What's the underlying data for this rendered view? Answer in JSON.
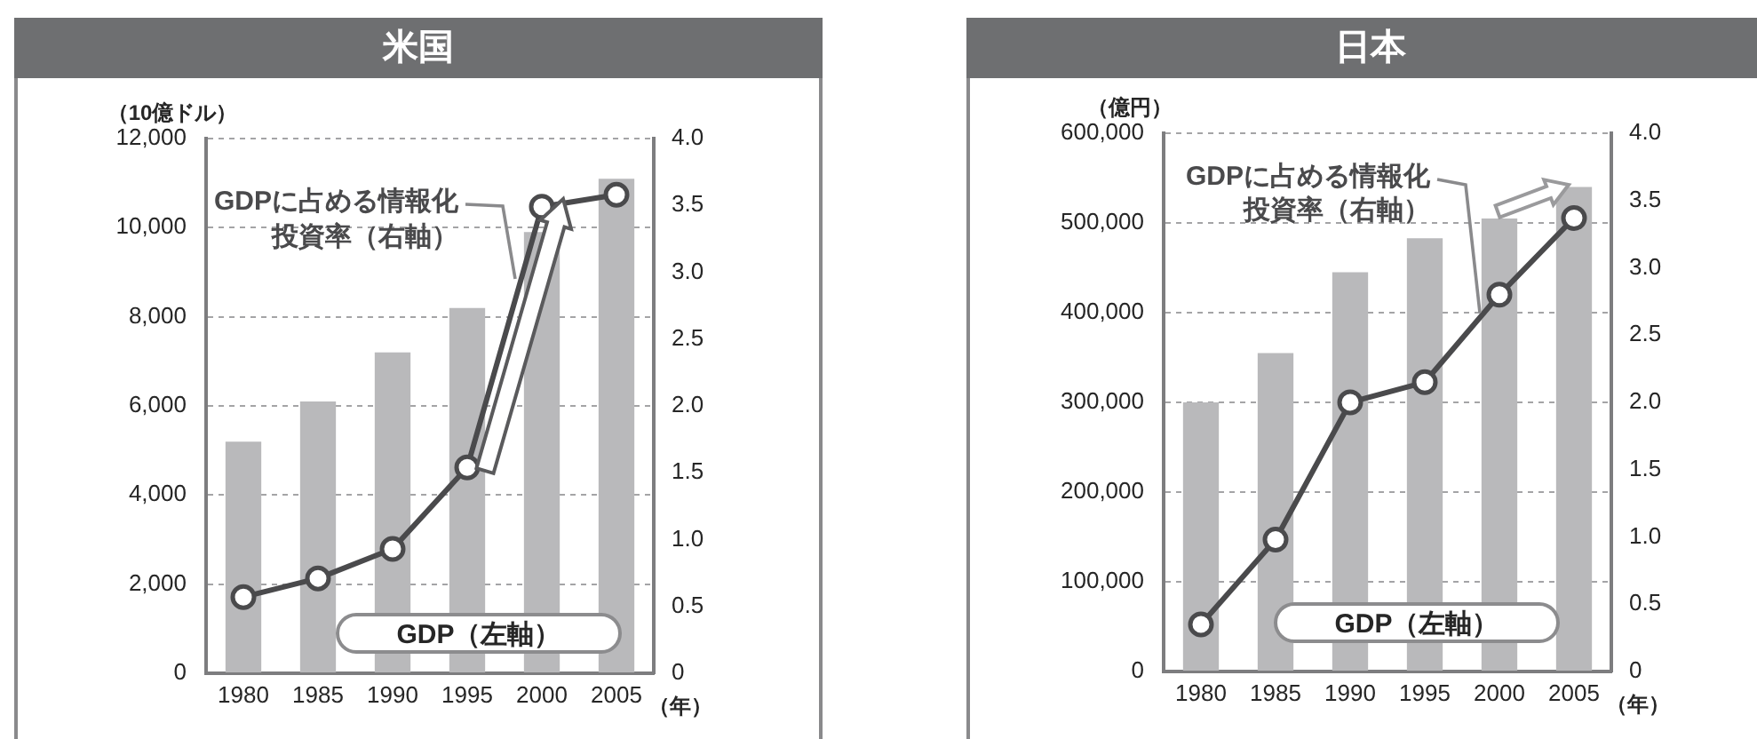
{
  "chart_data": [
    {
      "type": "bar",
      "title": "米国",
      "ylabel": "（10億ドル）",
      "xlabel": "（年）",
      "categories": [
        "1980",
        "1985",
        "1990",
        "1995",
        "2000",
        "2005"
      ],
      "series": [
        {
          "name": "GDP（左軸）",
          "type": "bar",
          "color": "#b9b9bb",
          "values": [
            5200,
            6100,
            7200,
            8200,
            9900,
            11100
          ]
        },
        {
          "name": "GDPに占める情報化投資率（右軸）",
          "type": "line",
          "axis": "y2",
          "color": "#4a4a4c",
          "values": [
            0.57,
            0.71,
            0.93,
            1.54,
            3.49,
            3.58
          ]
        }
      ],
      "ylim": [
        0,
        12000
      ],
      "yticks": [
        0,
        {
          "value": 2000,
          "label": "2,000"
        },
        {
          "value": 4000,
          "label": "4,000"
        },
        {
          "value": 6000,
          "label": "6,000"
        },
        {
          "value": 8000,
          "label": "8,000"
        },
        {
          "value": 10000,
          "label": "10,000"
        },
        {
          "value": 12000,
          "label": "12,000"
        }
      ],
      "y2lim": [
        0,
        4
      ],
      "y2ticks": [
        0,
        0.5,
        {
          "value": 1,
          "label": "1.0"
        },
        1.5,
        {
          "value": 2,
          "label": "2.0"
        },
        2.5,
        {
          "value": 3,
          "label": "3.0"
        },
        3.5,
        {
          "value": 4,
          "label": "4.0"
        }
      ],
      "grid": "y",
      "marker": "circle"
    },
    {
      "type": "bar",
      "title": "日本",
      "ylabel": "（億円）",
      "xlabel": "（年）",
      "categories": [
        "1980",
        "1985",
        "1990",
        "1995",
        "2000",
        "2005"
      ],
      "series": [
        {
          "name": "GDP（左軸）",
          "type": "bar",
          "color": "#b9b9bb",
          "values": [
            300000,
            355000,
            445000,
            483000,
            505000,
            540000
          ]
        },
        {
          "name": "GDPに占める情報化投資率（右軸）",
          "type": "line",
          "axis": "y2",
          "color": "#4a4a4c",
          "values": [
            0.35,
            0.98,
            2.0,
            2.15,
            2.8,
            3.37
          ]
        }
      ],
      "ylim": [
        0,
        600000
      ],
      "yticks": [
        0,
        {
          "value": 100000,
          "label": "100,000"
        },
        {
          "value": 200000,
          "label": "200,000"
        },
        {
          "value": 300000,
          "label": "300,000"
        },
        {
          "value": 400000,
          "label": "400,000"
        },
        {
          "value": 500000,
          "label": "500,000"
        },
        {
          "value": 600000,
          "label": "600,000"
        }
      ],
      "y2lim": [
        0,
        4
      ],
      "y2ticks": [
        0,
        0.5,
        {
          "value": 1,
          "label": "1.0"
        },
        1.5,
        {
          "value": 2,
          "label": "2.0"
        },
        2.5,
        {
          "value": 3,
          "label": "3.0"
        },
        3.5,
        {
          "value": 4,
          "label": "4.0"
        }
      ],
      "grid": "y",
      "marker": "circle"
    }
  ]
}
